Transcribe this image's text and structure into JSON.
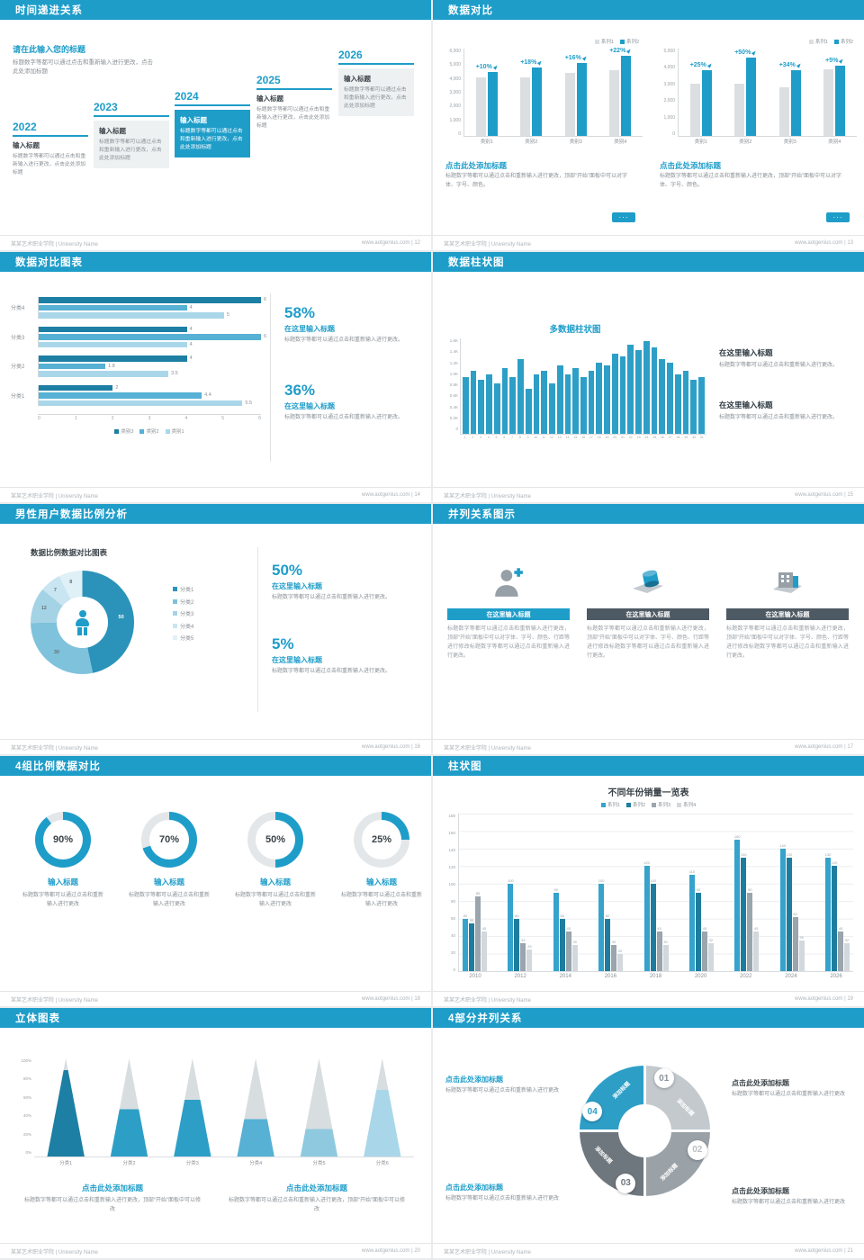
{
  "theme": {
    "accent": "#1f9dc9",
    "accent_dark": "#17708f",
    "track": "#e3e7e9",
    "base_bar": "#dcdfe2"
  },
  "footer": {
    "org": "某某艺术职业学院 | University Name",
    "site": "www.aotgenius.com",
    "sep": " | "
  },
  "ui": {
    "more_glyph": "···"
  },
  "slides": {
    "s1": {
      "title": "时间递进关系",
      "page": "12",
      "intro_title": "请在此输入您的标题",
      "intro_body": "标题数字等都可以通过点击和重新输入进行更改，点击此处添加标题",
      "steps": [
        {
          "year": "2022",
          "label": "输入标题",
          "body": "标题数字等都可以通过点击和重新输入进行更改，点击此处添加标题"
        },
        {
          "year": "2023",
          "label": "输入标题",
          "body": "标题数字等都可以通过点击和重新输入进行更改，点击此处添加标题"
        },
        {
          "year": "2024",
          "label": "输入标题",
          "body": "标题数字等都可以通过点击和重新输入进行更改，点击此处添加标题"
        },
        {
          "year": "2025",
          "label": "输入标题",
          "body": "标题数字等都可以通过点击和重新输入进行更改，点击此处添加标题"
        },
        {
          "year": "2026",
          "label": "输入标题",
          "body": "标题数字等都可以通过点击和重新输入进行更改，点击此处添加标题"
        }
      ]
    },
    "s2": {
      "title": "数据对比",
      "page": "13",
      "panels": [
        {
          "heading": "点击此处添加标题",
          "body": "标题数字等都可以通过点击和重新输入进行更改，顶部“开始”面板中可以对字体、字号、颜色。",
          "chart": {
            "type": "bar",
            "legend": [
              "系列1",
              "系列2"
            ],
            "categories": [
              "类别1",
              "类别2",
              "类别3",
              "类别4"
            ],
            "series": [
              {
                "name": "系列1",
                "values": [
                  4000,
                  4000,
                  4300,
                  4500
                ]
              },
              {
                "name": "系列2",
                "values": [
                  4400,
                  4700,
                  5000,
                  5500
                ]
              }
            ],
            "labels": [
              "+10%",
              "+18%",
              "+16%",
              "+22%"
            ],
            "ylim": [
              0,
              6000
            ]
          }
        },
        {
          "heading": "点击此处添加标题",
          "body": "标题数字等都可以通过点击和重新输入进行更改，顶部“开始”面板中可以对字体、字号、颜色。",
          "chart": {
            "type": "bar",
            "legend": [
              "系列1",
              "系列2"
            ],
            "categories": [
              "类别1",
              "类别2",
              "类别3",
              "类别4"
            ],
            "series": [
              {
                "name": "系列1",
                "values": [
                  3000,
                  3000,
                  2800,
                  3800
                ]
              },
              {
                "name": "系列2",
                "values": [
                  3750,
                  4500,
                  3750,
                  4000
                ]
              }
            ],
            "labels": [
              "+25%",
              "+50%",
              "+34%",
              "+5%"
            ],
            "ylim": [
              0,
              5000
            ]
          }
        }
      ]
    },
    "s3": {
      "title": "数据对比图表",
      "page": "14",
      "chart": {
        "type": "bar-horizontal",
        "legend": [
          "类别3",
          "类别2",
          "类别1"
        ],
        "colors": [
          "#1d7fa3",
          "#56b1d4",
          "#a9d7e9"
        ],
        "groups": [
          {
            "label": "分类4",
            "values": [
              6,
              4,
              5
            ]
          },
          {
            "label": "分类3",
            "values": [
              4,
              6,
              4
            ]
          },
          {
            "label": "分类2",
            "values": [
              4,
              1.8,
              3.5
            ]
          },
          {
            "label": "分类1",
            "values": [
              2,
              4.4,
              5.5
            ]
          }
        ],
        "xlim": [
          0,
          6
        ]
      },
      "stats": [
        {
          "pct": "58%",
          "heading": "在这里输入标题",
          "body": "标题数字等都可以通过点击和重新输入进行更改。"
        },
        {
          "pct": "36%",
          "heading": "在这里输入标题",
          "body": "标题数字等都可以通过点击和重新输入进行更改。"
        }
      ]
    },
    "s4": {
      "title": "数据柱状图",
      "page": "15",
      "chart_title": "多数据柱状图",
      "chart": {
        "type": "bar",
        "x": [
          "1",
          "2",
          "3",
          "4",
          "5",
          "6",
          "7",
          "8",
          "9",
          "10",
          "11",
          "12",
          "13",
          "14",
          "15",
          "16",
          "17",
          "18",
          "19",
          "20",
          "21",
          "22",
          "23",
          "24",
          "25",
          "26",
          "27",
          "28",
          "29",
          "30",
          "31"
        ],
        "values": [
          950,
          1050,
          900,
          1000,
          850,
          1100,
          950,
          1250,
          750,
          1000,
          1050,
          850,
          1150,
          1000,
          1100,
          950,
          1050,
          1200,
          1150,
          1350,
          1300,
          1500,
          1400,
          1550,
          1450,
          1250,
          1200,
          1000,
          1050,
          900,
          950
        ],
        "ylim": [
          0,
          1600
        ],
        "yticks": [
          "1.6K",
          "1.4K",
          "1.2K",
          "1.0K",
          "0.8K",
          "0.6K",
          "0.4K",
          "0.2K",
          "0"
        ]
      },
      "blocks": [
        {
          "heading": "在这里输入标题",
          "body": "标题数字等都可以通过点击和重新输入进行更改。"
        },
        {
          "heading": "在这里输入标题",
          "body": "标题数字等都可以通过点击和重新输入进行更改。"
        }
      ]
    },
    "s5": {
      "title": "男性用户数据比例分析",
      "page": "16",
      "chart_title": "数据比例数据对比图表",
      "chart": {
        "type": "pie",
        "donut": true,
        "segments": [
          {
            "label": "50",
            "value": 50,
            "color": "#2b93ba"
          },
          {
            "label": "30",
            "value": 30,
            "color": "#7fc2dc"
          },
          {
            "label": "12",
            "value": 12,
            "color": "#a5d3e6"
          },
          {
            "label": "7",
            "value": 7,
            "color": "#c8e5f1"
          },
          {
            "label": "8",
            "value": 8,
            "color": "#e0f0f7"
          }
        ],
        "legend": [
          "分类1",
          "分类2",
          "分类3",
          "分类4",
          "分类5"
        ]
      },
      "stats": [
        {
          "pct": "50%",
          "heading": "在这里输入标题",
          "body": "标题数字等都可以通过点击和重新输入进行更改。"
        },
        {
          "pct": "5%",
          "heading": "在这里输入标题",
          "body": "标题数字等都可以通过点击和重新输入进行更改。"
        }
      ]
    },
    "s6": {
      "title": "并列关系图示",
      "page": "17",
      "columns": [
        {
          "heading": "在这里输入标题",
          "body": "标题数字等都可以通过点击和重新输入进行更改，顶部“开始”面板中可以对字体、字号、颜色、行距等进行修改标题数字等都可以通过点击和重新输入进行更改。"
        },
        {
          "heading": "在这里输入标题",
          "body": "标题数字等都可以通过点击和重新输入进行更改，顶部“开始”面板中可以对字体、字号、颜色、行距等进行修改标题数字等都可以通过点击和重新输入进行更改。"
        },
        {
          "heading": "在这里输入标题",
          "body": "标题数字等都可以通过点击和重新输入进行更改，顶部“开始”面板中可以对字体、字号、颜色、行距等进行修改标题数字等都可以通过点击和重新输入进行更改。"
        }
      ]
    },
    "s7": {
      "title": "4组比例数据对比",
      "page": "18",
      "items": [
        {
          "pct": 90,
          "pct_label": "90%",
          "heading": "输入标题",
          "body": "标题数字等都可以通过点击和重新输入进行更改"
        },
        {
          "pct": 70,
          "pct_label": "70%",
          "heading": "输入标题",
          "body": "标题数字等都可以通过点击和重新输入进行更改"
        },
        {
          "pct": 50,
          "pct_label": "50%",
          "heading": "输入标题",
          "body": "标题数字等都可以通过点击和重新输入进行更改"
        },
        {
          "pct": 25,
          "pct_label": "25%",
          "heading": "输入标题",
          "body": "标题数字等都可以通过点击和重新输入进行更改"
        }
      ]
    },
    "s8": {
      "title": "柱状图",
      "page": "19",
      "chart": {
        "type": "bar",
        "title": "不同年份销量一览表",
        "categories": [
          "2010",
          "2012",
          "2014",
          "2016",
          "2018",
          "2020",
          "2022",
          "2024",
          "2026"
        ],
        "series": [
          {
            "name": "系列1",
            "color": "#35a3cc",
            "values": [
              60,
              100,
              90,
              100,
              120,
              110,
              150,
              140,
              130
            ]
          },
          {
            "name": "系列2",
            "color": "#1e7d9e",
            "values": [
              55,
              60,
              60,
              60,
              100,
              90,
              130,
              130,
              120
            ]
          },
          {
            "name": "系列3",
            "color": "#9aa5ad",
            "values": [
              85,
              32,
              45,
              30,
              45,
              45,
              90,
              62,
              45
            ]
          },
          {
            "name": "系列4",
            "color": "#d2d8dc",
            "values": [
              45,
              25,
              30,
              20,
              30,
              32,
              45,
              35,
              32
            ]
          }
        ],
        "ylim": [
          0,
          180
        ],
        "ystep": 20
      }
    },
    "s9": {
      "title": "立体图表",
      "page": "20",
      "chart": {
        "type": "cone",
        "yticks": [
          "100%",
          "80%",
          "60%",
          "40%",
          "20%",
          "0%"
        ],
        "items": [
          {
            "label": "分类1",
            "pct": 88,
            "color": "#1d7fa3"
          },
          {
            "label": "分类2",
            "pct": 48,
            "color": "#2d9fc7"
          },
          {
            "label": "分类3",
            "pct": 58,
            "color": "#2d9fc7"
          },
          {
            "label": "分类4",
            "pct": 38,
            "color": "#56b1d4"
          },
          {
            "label": "分类5",
            "pct": 28,
            "color": "#8fc9e0"
          },
          {
            "label": "分类6",
            "pct": 68,
            "color": "#a9d7e9"
          }
        ]
      },
      "blocks": [
        {
          "heading": "点击此处添加标题",
          "body": "标题数字等都可以通过点击和重新输入进行更改，顶部“开始”面板中可以修改"
        },
        {
          "heading": "点击此处添加标题",
          "body": "标题数字等都可以通过点击和重新输入进行更改，顶部“开始”面板中可以修改"
        }
      ]
    },
    "s10": {
      "title": "4部分并列关系",
      "page": "21",
      "ring": {
        "segments": [
          {
            "num": "01",
            "label": "添加标题",
            "color": "#c3c9cd",
            "num_color": "#8d959b"
          },
          {
            "num": "02",
            "label": "添加标题",
            "color": "#9aa2a8",
            "num_color": "#b9bfc4"
          },
          {
            "num": "03",
            "label": "添加标题",
            "color": "#6f777e",
            "num_color": "#6f777e"
          },
          {
            "num": "04",
            "label": "添加标题",
            "color": "#2d9fc7",
            "num_color": "#2d9fc7"
          }
        ]
      },
      "notes": [
        {
          "heading": "点击此处添加标题",
          "body": "标题数字等都可以通过点击和重新输入进行更改"
        },
        {
          "heading": "点击此处添加标题",
          "body": "标题数字等都可以通过点击和重新输入进行更改"
        },
        {
          "heading": "点击此处添加标题",
          "body": "标题数字等都可以通过点击和重新输入进行更改"
        },
        {
          "heading": "点击此处添加标题",
          "body": "标题数字等都可以通过点击和重新输入进行更改"
        }
      ]
    }
  }
}
